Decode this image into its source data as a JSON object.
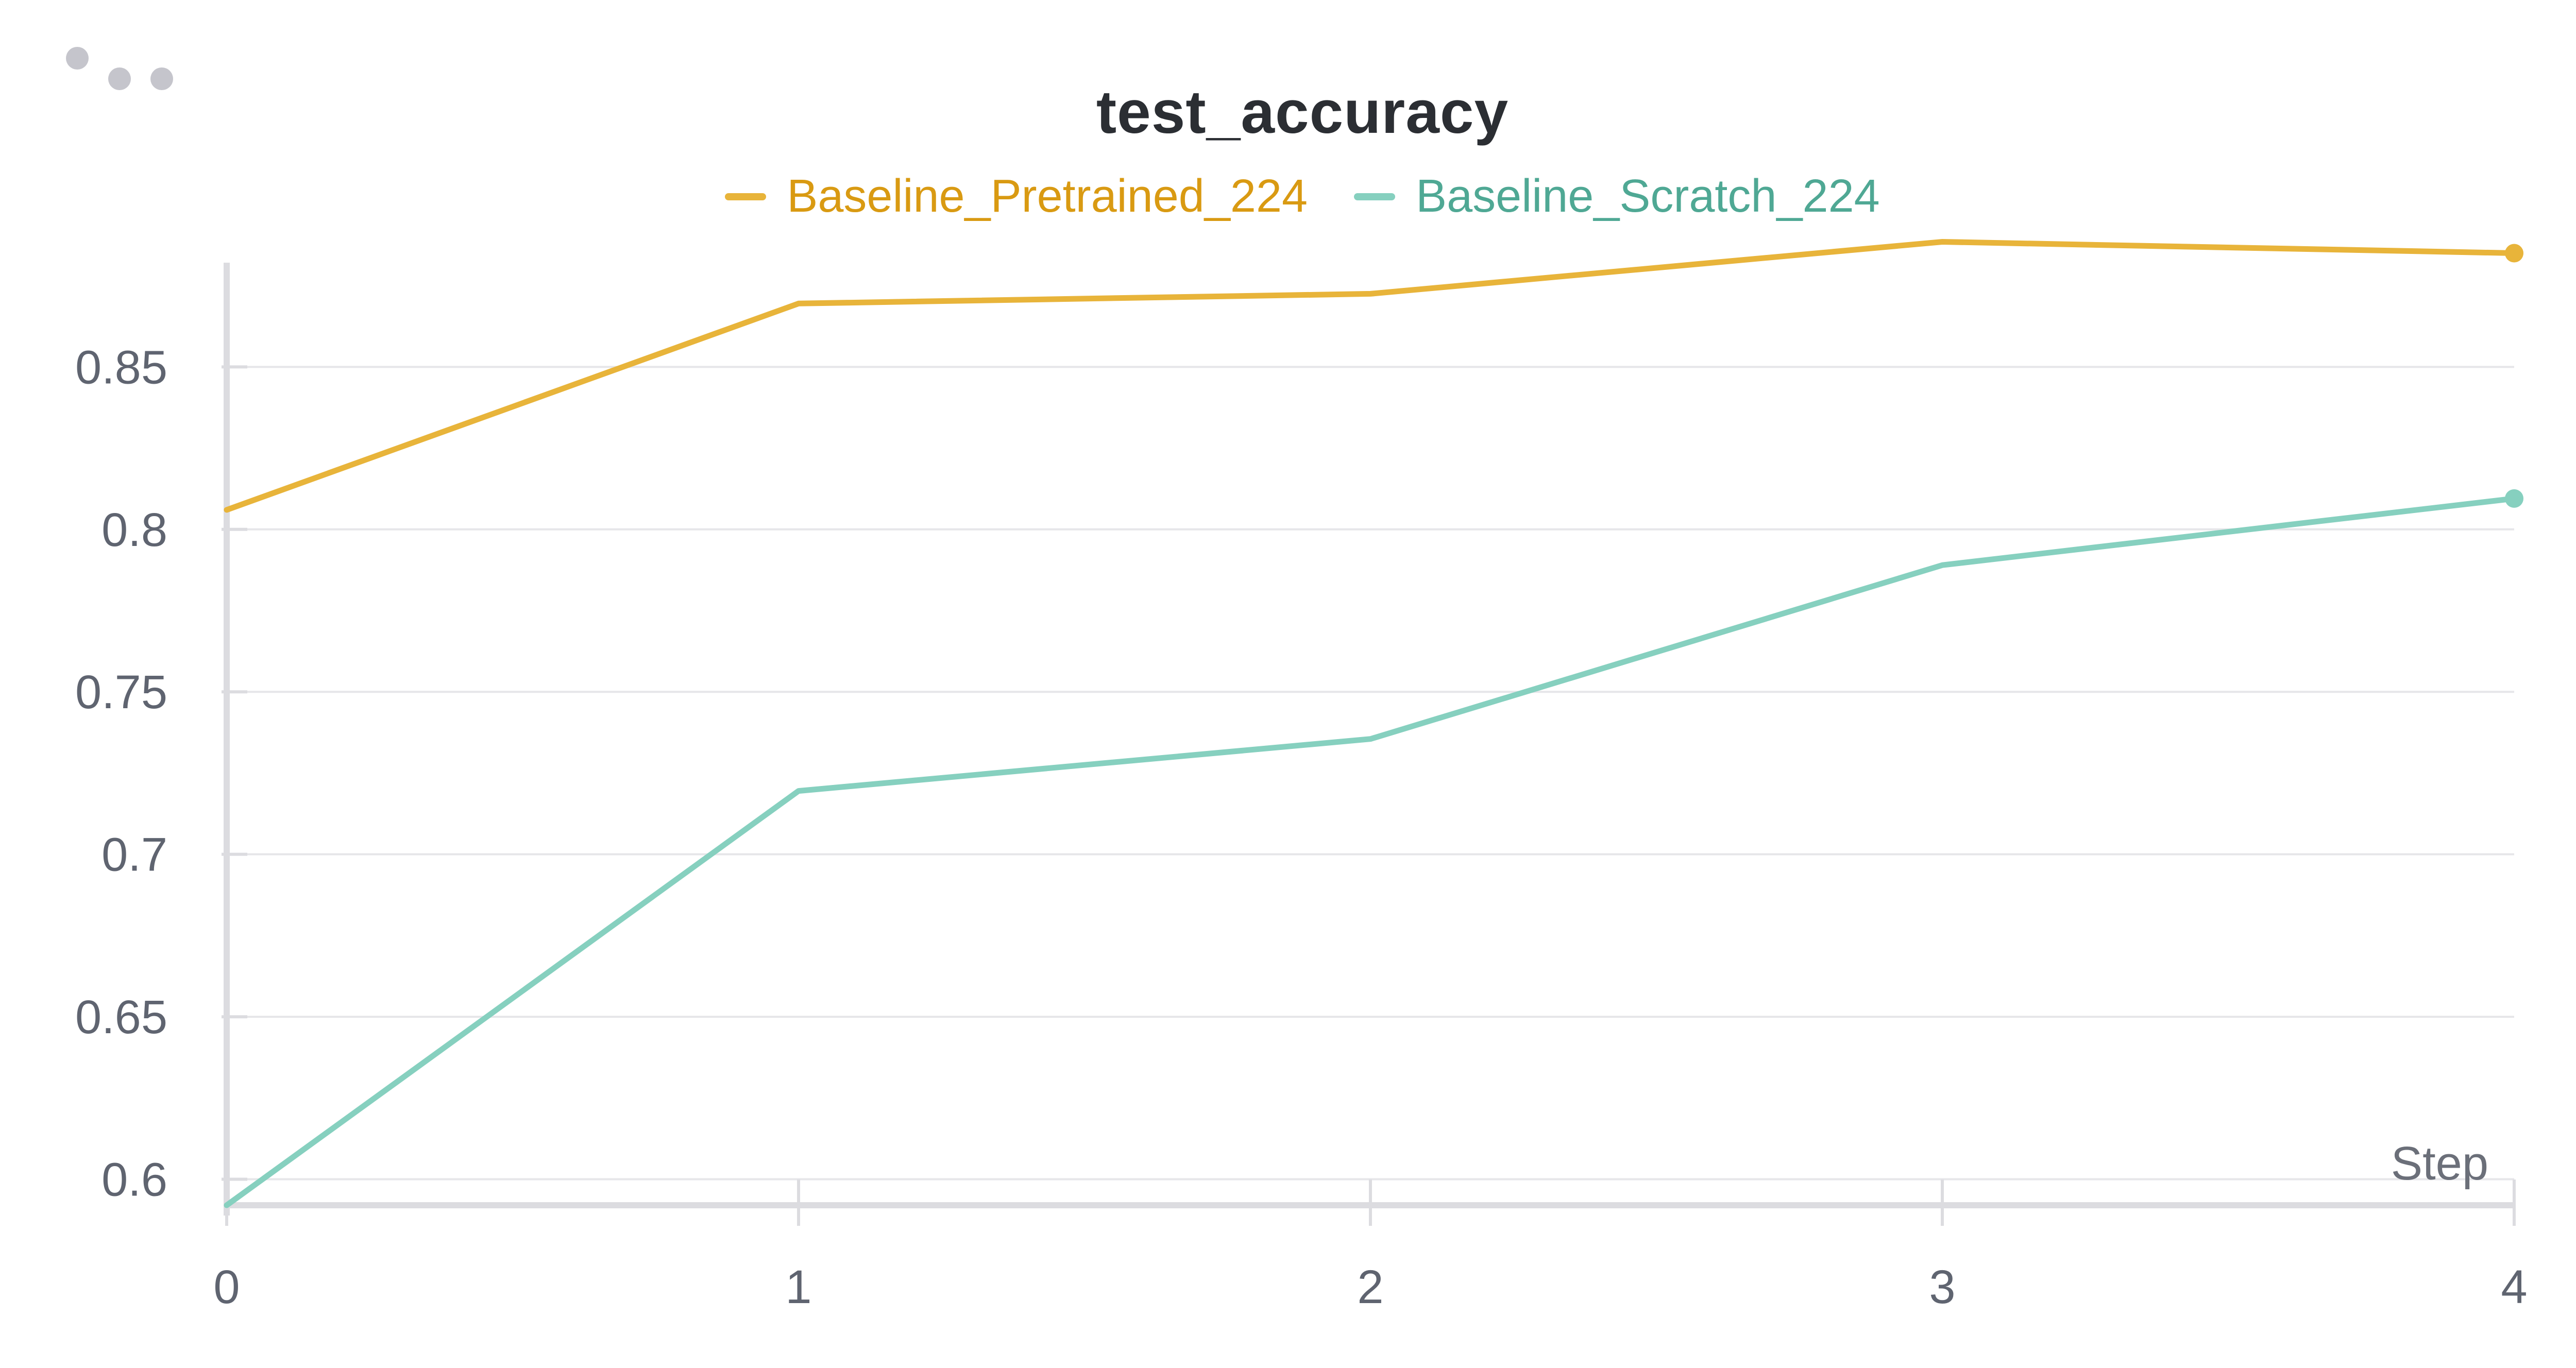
{
  "toolbar": {
    "menu_icon": "more-horizontal-icon"
  },
  "colors": {
    "background": "#ffffff",
    "grid": "#e6e6e9",
    "axis": "#dcdce0",
    "tick_text": "#5f6470",
    "title_text": "#2b2e33"
  },
  "chart_data": {
    "type": "line",
    "title": "test_accuracy",
    "xlabel": "Step",
    "ylabel": "",
    "x": [
      0,
      1,
      2,
      3,
      4
    ],
    "xticks": [
      "0",
      "1",
      "2",
      "3",
      "4"
    ],
    "yticks": [
      "0.6",
      "0.65",
      "0.7",
      "0.75",
      "0.8",
      "0.85"
    ],
    "xlim": [
      0,
      4
    ],
    "ylim": [
      0.592,
      0.89
    ],
    "grid": true,
    "legend_position": "top-center",
    "series": [
      {
        "name": "Baseline_Pretrained_224",
        "color": "#e8b43a",
        "text_color": "#d99a12",
        "values": [
          0.806,
          0.8695,
          0.8725,
          0.8885,
          0.885
        ]
      },
      {
        "name": "Baseline_Scratch_224",
        "color": "#86d0bf",
        "text_color": "#4fa894",
        "values": [
          0.592,
          0.7195,
          0.7355,
          0.789,
          0.8095
        ]
      }
    ]
  }
}
